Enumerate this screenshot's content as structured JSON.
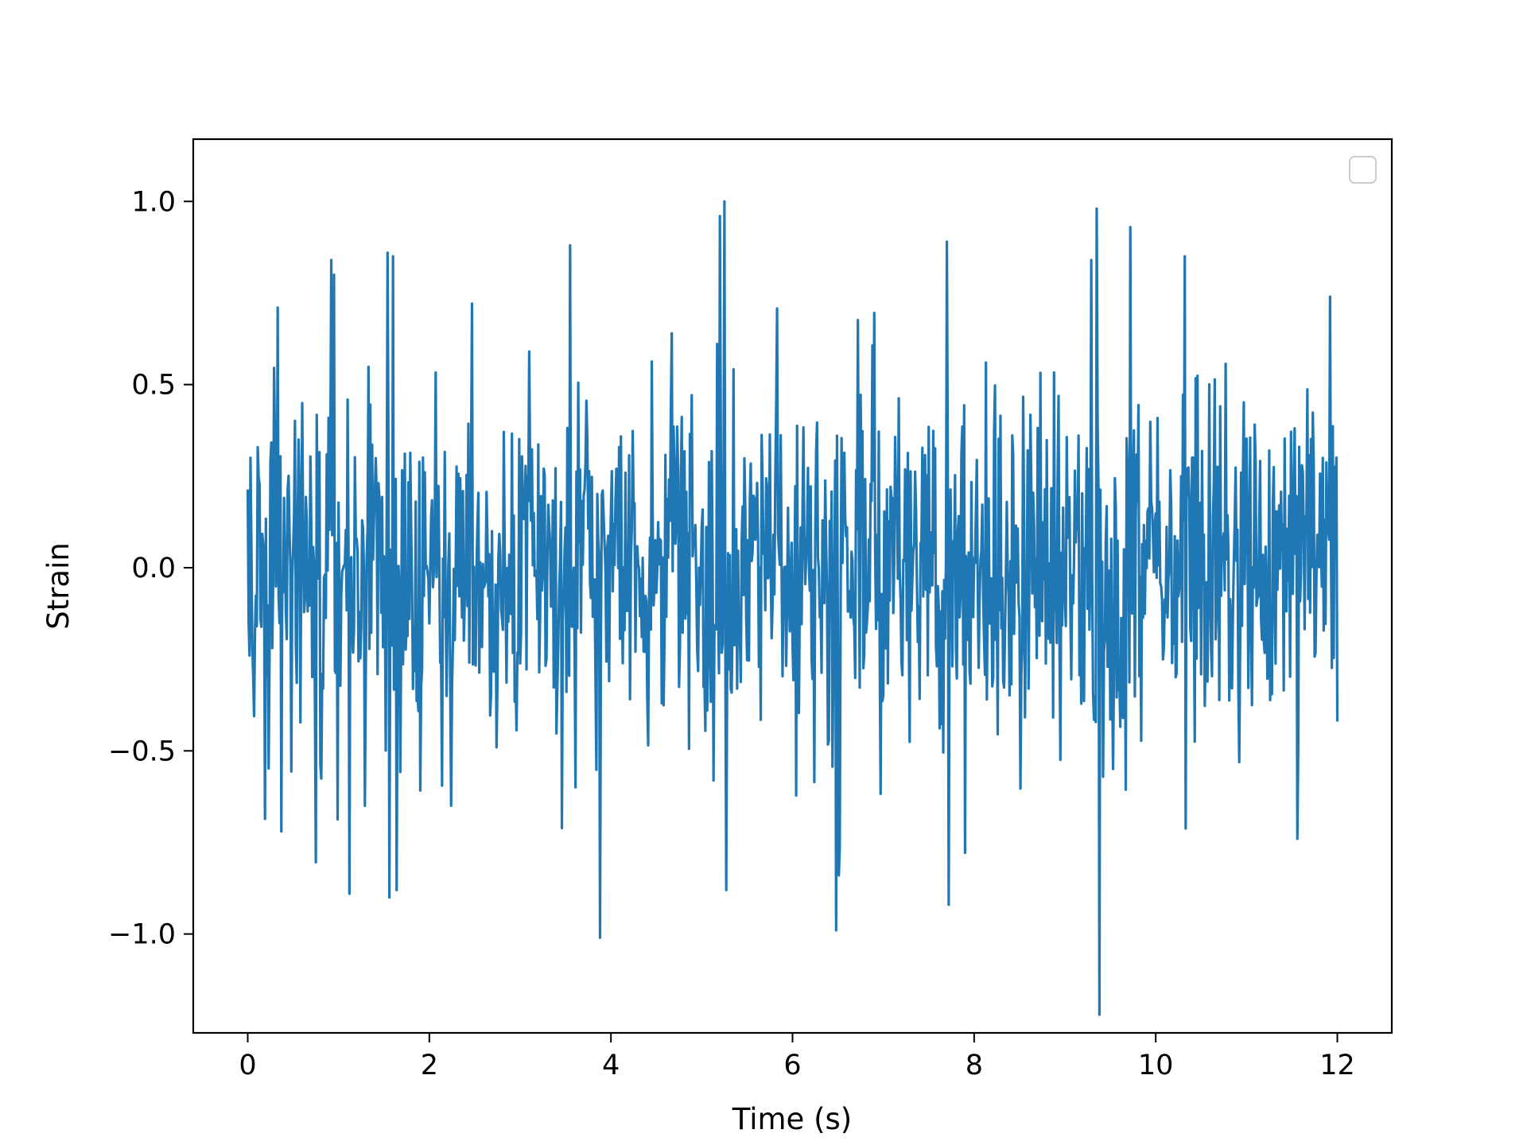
{
  "chart_data": {
    "type": "line",
    "title": "",
    "xlabel": "Time (s)",
    "ylabel": "Strain",
    "xlim": [
      -0.6,
      12.6
    ],
    "ylim": [
      -1.27,
      1.17
    ],
    "x_ticks": [
      0,
      2,
      4,
      6,
      8,
      10,
      12
    ],
    "x_tick_labels": [
      "0",
      "2",
      "4",
      "6",
      "8",
      "10",
      "12"
    ],
    "y_ticks": [
      -1.0,
      -0.5,
      0.0,
      0.5,
      1.0
    ],
    "y_tick_labels": [
      "−1.0",
      "−0.5",
      "0.0",
      "0.5",
      "1.0"
    ],
    "grid": false,
    "legend": {
      "placement": "top-right",
      "entries": []
    },
    "series": [
      {
        "color": "#1f77b4",
        "x_start": 0,
        "x_end": 12,
        "sample_count": 1200,
        "std": 0.23,
        "extremes": [
          {
            "x": 0.03,
            "y": 0.3
          },
          {
            "x": 0.33,
            "y": 0.71
          },
          {
            "x": 0.37,
            "y": -0.72
          },
          {
            "x": 0.95,
            "y": 0.8
          },
          {
            "x": 1.12,
            "y": -0.89
          },
          {
            "x": 1.54,
            "y": 0.86
          },
          {
            "x": 1.56,
            "y": -0.9
          },
          {
            "x": 1.6,
            "y": 0.85
          },
          {
            "x": 1.64,
            "y": -0.88
          },
          {
            "x": 3.55,
            "y": 0.88
          },
          {
            "x": 3.88,
            "y": -1.01
          },
          {
            "x": 5.2,
            "y": 0.96
          },
          {
            "x": 5.25,
            "y": 1.0
          },
          {
            "x": 5.27,
            "y": -0.88
          },
          {
            "x": 6.48,
            "y": -0.99
          },
          {
            "x": 7.7,
            "y": 0.89
          },
          {
            "x": 7.72,
            "y": -0.92
          },
          {
            "x": 9.35,
            "y": 0.98
          },
          {
            "x": 9.38,
            "y": -1.22
          },
          {
            "x": 9.72,
            "y": 0.93
          },
          {
            "x": 10.32,
            "y": 0.85
          },
          {
            "x": 11.56,
            "y": -0.74
          },
          {
            "x": 11.92,
            "y": 0.74
          },
          {
            "x": 12.0,
            "y": -0.42
          }
        ]
      }
    ]
  }
}
